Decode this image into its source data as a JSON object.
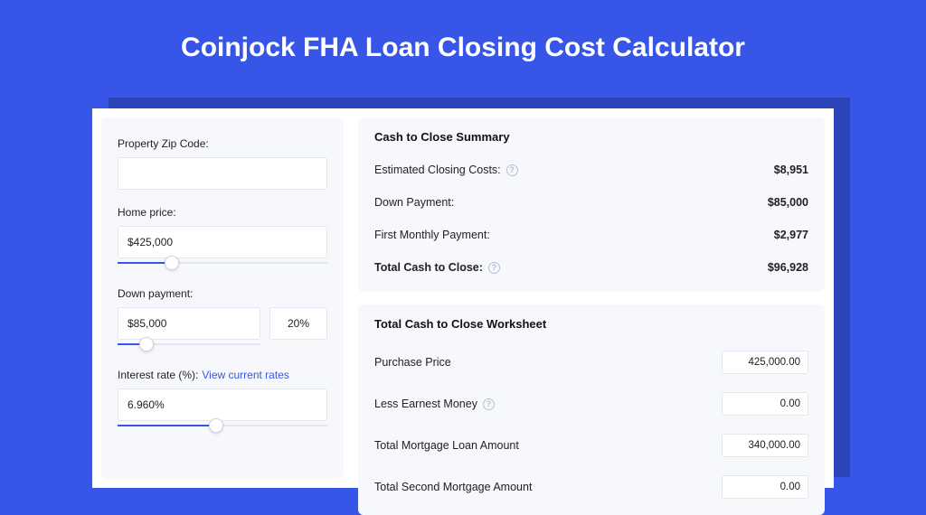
{
  "colors": {
    "page_bg": "#3755e6",
    "card_bg": "#ffffff",
    "panel_bg": "#f7f8fc",
    "shadow_bg": "#2c44b8",
    "text": "#222222",
    "accent": "#3755e6",
    "border": "#e3e6ef",
    "help_border": "#b8bdd0"
  },
  "title": "Coinjock FHA Loan Closing Cost Calculator",
  "left": {
    "zip_label": "Property Zip Code:",
    "zip_value": "",
    "home_price_label": "Home price:",
    "home_price_value": "$425,000",
    "home_price_slider": {
      "fill_pct": "26%",
      "thumb_pct": "26%"
    },
    "down_payment_label": "Down payment:",
    "down_payment_value": "$85,000",
    "down_payment_pct": "20%",
    "down_payment_slider": {
      "fill_pct": "20%",
      "thumb_pct": "20%"
    },
    "interest_label": "Interest rate (%):",
    "interest_link": "View current rates",
    "interest_value": "6.960%",
    "interest_slider": {
      "fill_pct": "47%",
      "thumb_pct": "47%"
    }
  },
  "summary": {
    "title": "Cash to Close Summary",
    "rows": [
      {
        "label": "Estimated Closing Costs:",
        "help": true,
        "value": "$8,951",
        "bold": false
      },
      {
        "label": "Down Payment:",
        "help": false,
        "value": "$85,000",
        "bold": false
      },
      {
        "label": "First Monthly Payment:",
        "help": false,
        "value": "$2,977",
        "bold": false
      },
      {
        "label": "Total Cash to Close:",
        "help": true,
        "value": "$96,928",
        "bold": true
      }
    ]
  },
  "worksheet": {
    "title": "Total Cash to Close Worksheet",
    "rows": [
      {
        "label": "Purchase Price",
        "help": false,
        "value": "425,000.00"
      },
      {
        "label": "Less Earnest Money",
        "help": true,
        "value": "0.00"
      },
      {
        "label": "Total Mortgage Loan Amount",
        "help": false,
        "value": "340,000.00"
      },
      {
        "label": "Total Second Mortgage Amount",
        "help": false,
        "value": "0.00"
      }
    ]
  }
}
